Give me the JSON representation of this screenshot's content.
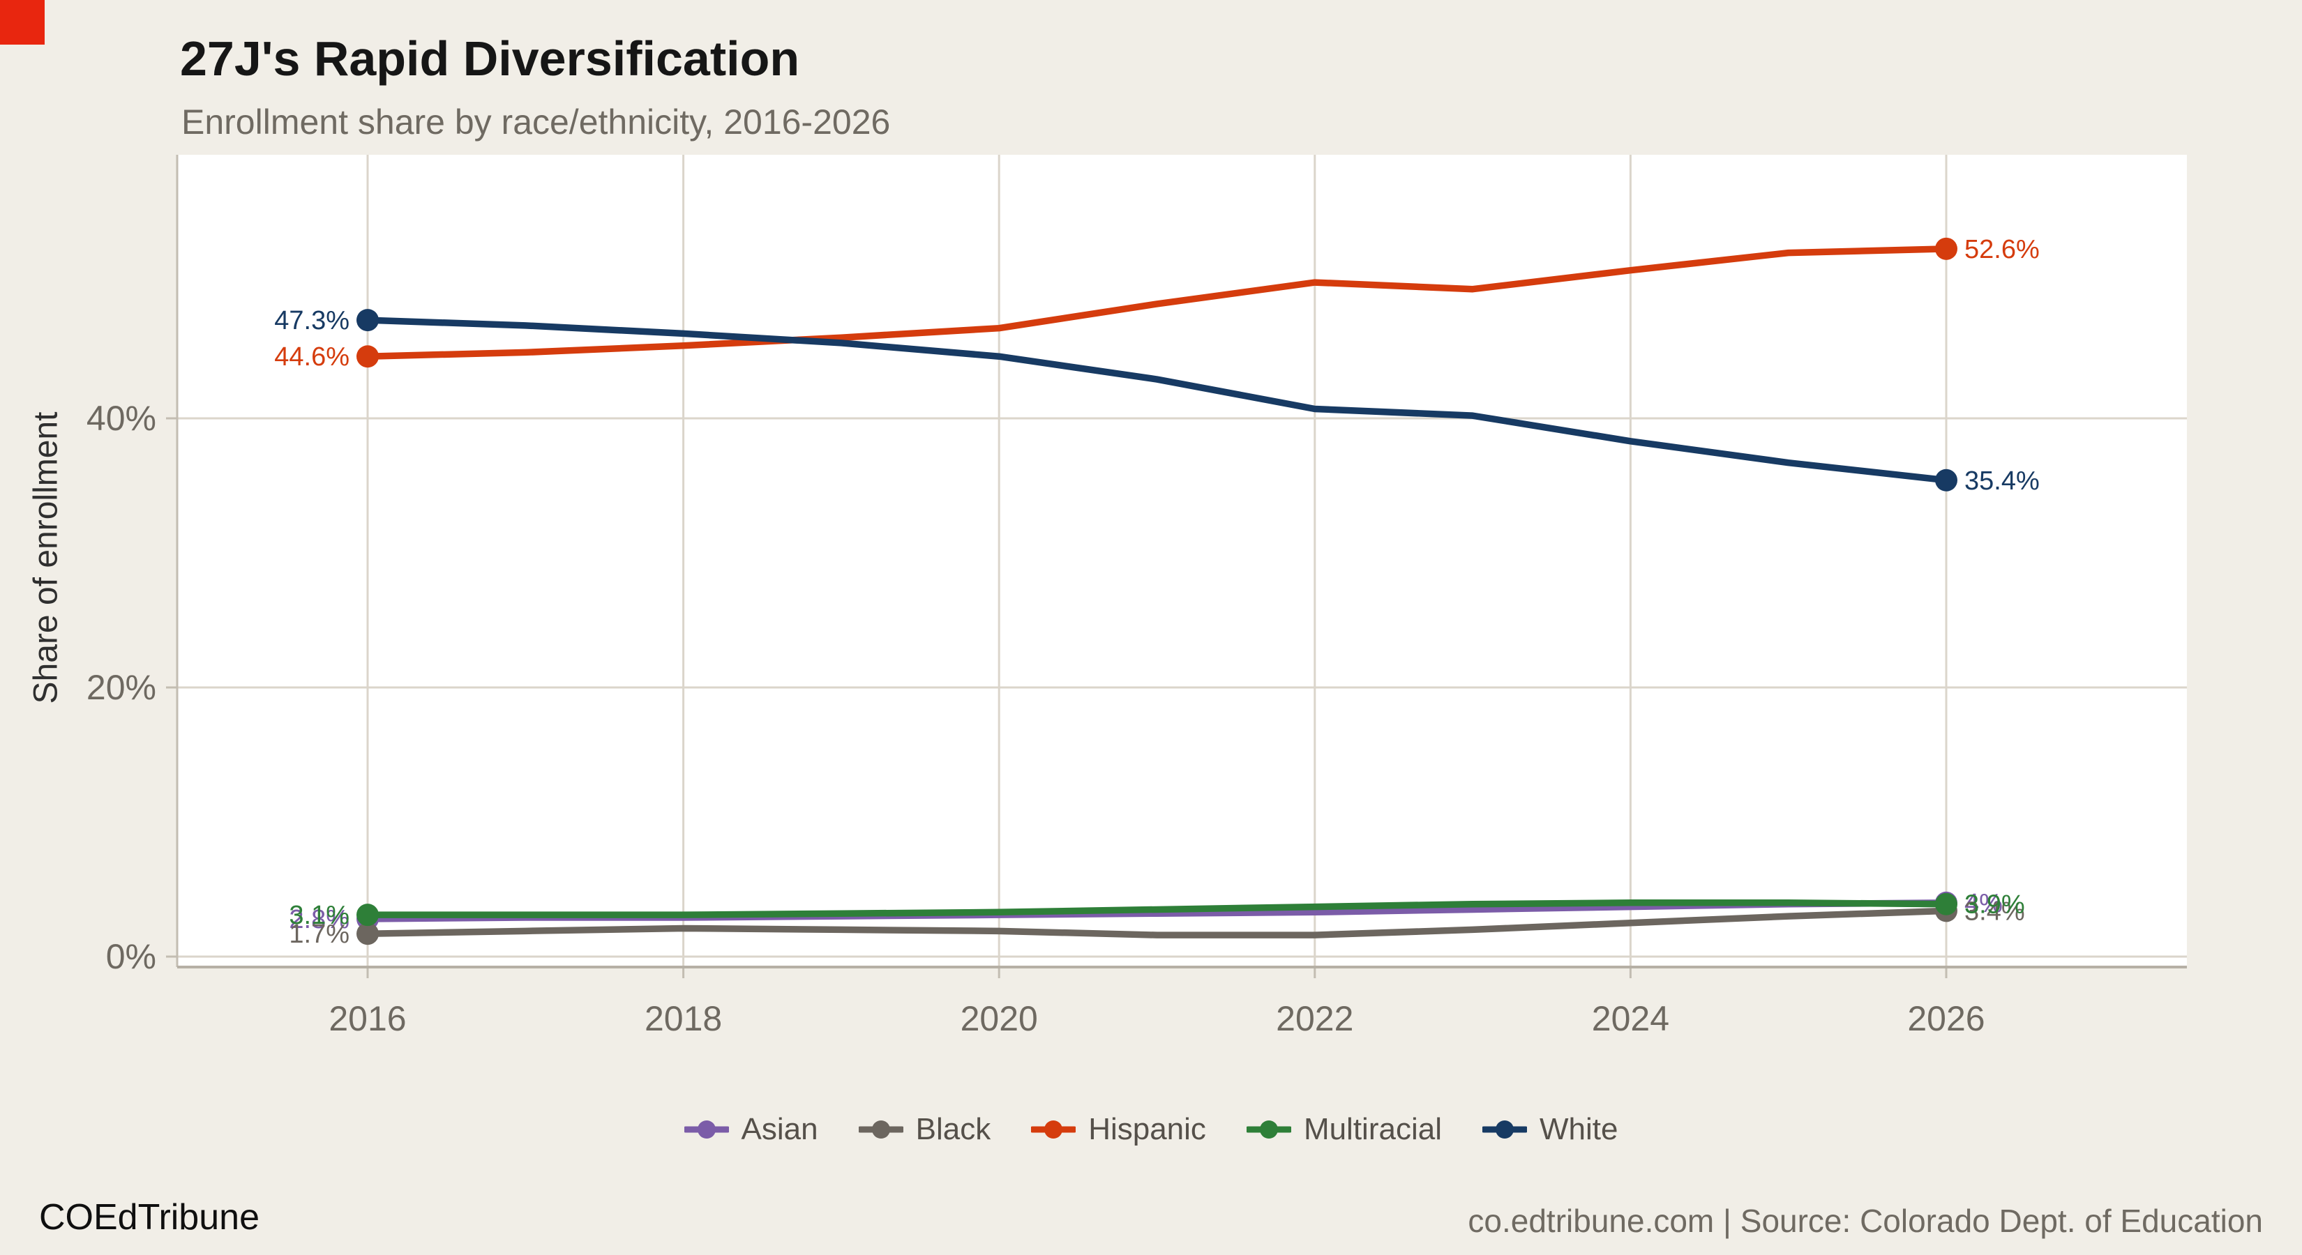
{
  "page": {
    "footer_left": "COEdTribune",
    "footer_right": "co.edtribune.com | Source: Colorado Dept. of Education",
    "logo_color": "#e8260f"
  },
  "chart_data": {
    "type": "line",
    "title": "27J's Rapid Diversification",
    "subtitle": "Enrollment share by race/ethnicity, 2016-2026",
    "ylabel": "Share of enrollment",
    "xlabel": "",
    "x": [
      2016,
      2017,
      2018,
      2019,
      2020,
      2021,
      2022,
      2023,
      2024,
      2025,
      2026
    ],
    "x_tick_labels": [
      "2016",
      "2018",
      "2020",
      "2022",
      "2024",
      "2026"
    ],
    "y_ticks": [
      {
        "value": 0,
        "label": "0%"
      },
      {
        "value": 20,
        "label": "20%"
      },
      {
        "value": 40,
        "label": "40%"
      }
    ],
    "ylim": [
      0,
      59.6
    ],
    "grid": true,
    "legend_position": "bottom-center",
    "series": [
      {
        "name": "Asian",
        "color": "#7b5ca8",
        "start_label": "2.8%",
        "end_label": "4%",
        "values": [
          2.8,
          2.9,
          2.9,
          3.0,
          3.1,
          3.2,
          3.3,
          3.5,
          3.7,
          3.9,
          4.0
        ]
      },
      {
        "name": "Black",
        "color": "#6c665f",
        "start_label": "1.7%",
        "end_label": "3.4%",
        "values": [
          1.7,
          1.9,
          2.1,
          2.0,
          1.9,
          1.6,
          1.6,
          2.0,
          2.5,
          3.0,
          3.4
        ]
      },
      {
        "name": "Hispanic",
        "color": "#d53c0d",
        "start_label": "44.6%",
        "end_label": "52.6%",
        "values": [
          44.6,
          44.9,
          45.4,
          46.0,
          46.7,
          48.5,
          50.1,
          49.6,
          51.0,
          52.3,
          52.6
        ]
      },
      {
        "name": "Multiracial",
        "color": "#2e7f38",
        "start_label": "3.1%",
        "end_label": "3.9%",
        "values": [
          3.1,
          3.1,
          3.1,
          3.2,
          3.3,
          3.5,
          3.7,
          3.9,
          4.0,
          4.0,
          3.9
        ]
      },
      {
        "name": "White",
        "color": "#173a63",
        "start_label": "47.3%",
        "end_label": "35.4%",
        "values": [
          47.3,
          46.9,
          46.3,
          45.6,
          44.6,
          42.9,
          40.7,
          40.2,
          38.3,
          36.7,
          35.4
        ]
      }
    ]
  }
}
